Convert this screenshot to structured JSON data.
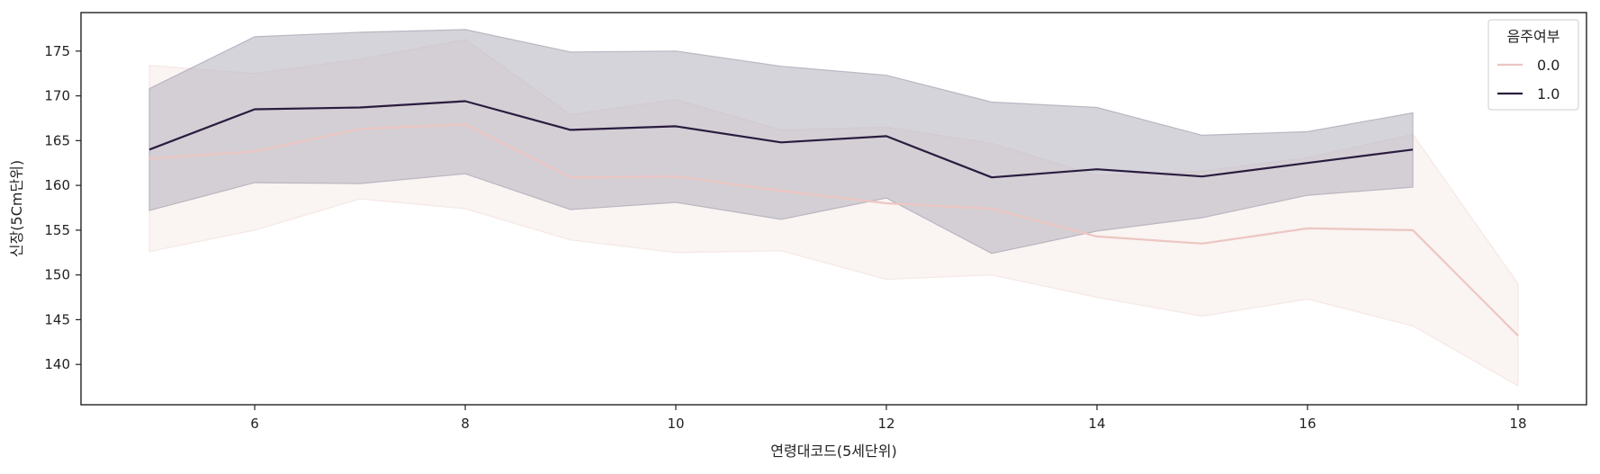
{
  "chart_data": {
    "type": "line",
    "xlabel": "연령대코드(5세단위)",
    "ylabel": "신장(5Cm단위)",
    "xlim": [
      4.35,
      18.65
    ],
    "ylim": [
      135.5,
      179.3
    ],
    "x_ticks": [
      6,
      8,
      10,
      12,
      14,
      16,
      18
    ],
    "y_ticks": [
      140,
      145,
      150,
      155,
      160,
      165,
      170,
      175
    ],
    "grid": false,
    "legend": {
      "title": "음주여부",
      "position": "top-right",
      "entries": [
        "0.0",
        "1.0"
      ]
    },
    "series": [
      {
        "name": "0.0",
        "color": "#ecc6c2",
        "band_color": "#f5e6e3",
        "x": [
          5,
          6,
          7,
          8,
          9,
          10,
          11,
          12,
          13,
          14,
          15,
          16,
          17,
          18
        ],
        "values": [
          163.0,
          163.8,
          166.3,
          166.8,
          160.9,
          161.0,
          159.4,
          158.0,
          157.4,
          154.3,
          153.5,
          155.2,
          155.0,
          143.2
        ],
        "ci_lower": [
          152.6,
          155.0,
          158.5,
          157.4,
          153.9,
          152.5,
          152.7,
          149.5,
          150.0,
          147.5,
          145.4,
          147.3,
          144.3,
          137.6
        ],
        "ci_upper": [
          173.4,
          172.5,
          174.1,
          176.3,
          167.9,
          169.6,
          166.2,
          166.5,
          164.7,
          161.1,
          161.6,
          163.1,
          165.7,
          149.0
        ]
      },
      {
        "name": "1.0",
        "color": "#2a1c3f",
        "band_color": "#b5b1bd",
        "x": [
          5,
          6,
          7,
          8,
          9,
          10,
          11,
          12,
          13,
          14,
          15,
          16,
          17
        ],
        "values": [
          164.0,
          168.5,
          168.7,
          169.4,
          166.2,
          166.6,
          164.8,
          165.5,
          160.9,
          161.8,
          161.0,
          162.5,
          164.0
        ],
        "ci_lower": [
          157.2,
          160.3,
          160.2,
          161.3,
          157.3,
          158.1,
          156.2,
          158.6,
          152.4,
          154.9,
          156.4,
          158.9,
          159.8
        ],
        "ci_upper": [
          170.8,
          176.6,
          177.1,
          177.4,
          174.9,
          175.0,
          173.3,
          172.3,
          169.3,
          168.7,
          165.6,
          166.0,
          168.1
        ]
      }
    ]
  }
}
